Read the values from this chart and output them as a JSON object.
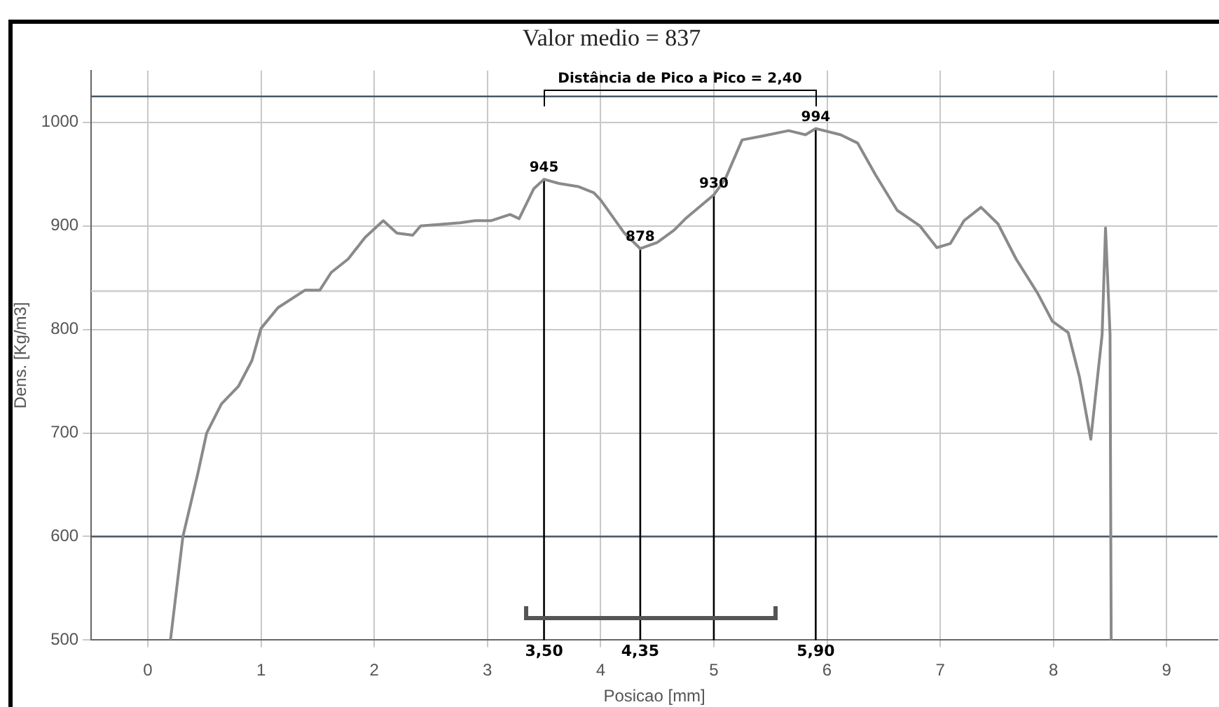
{
  "chart_data": {
    "type": "line",
    "title": "Valor medio = 837",
    "xlabel": "Posicao [mm]",
    "ylabel": "Dens. [Kg/m3]",
    "xlim": [
      -0.5,
      9.45
    ],
    "xticks": [
      0,
      1,
      2,
      3,
      4,
      5,
      6,
      7,
      8,
      9
    ],
    "ylim": [
      500,
      1050
    ],
    "yticks": [
      500,
      600,
      700,
      800,
      900,
      1000
    ],
    "grid": true,
    "legend": false,
    "marker": "none",
    "line_style": "solid",
    "series": [
      {
        "color": "#8a8a8a",
        "x": [
          0.2,
          0.31,
          0.44,
          0.52,
          0.65,
          0.8,
          0.92,
          1.0,
          1.15,
          1.39,
          1.52,
          1.62,
          1.77,
          1.92,
          2.08,
          2.2,
          2.34,
          2.41,
          2.76,
          2.89,
          3.03,
          3.2,
          3.28,
          3.41,
          3.5,
          3.63,
          3.8,
          3.94,
          4.0,
          4.21,
          4.35,
          4.5,
          4.65,
          4.75,
          5.0,
          5.1,
          5.25,
          5.44,
          5.66,
          5.81,
          5.9,
          6.12,
          6.27,
          6.43,
          6.62,
          6.82,
          6.97,
          7.09,
          7.21,
          7.36,
          7.51,
          7.67,
          7.86,
          7.99,
          8.13,
          8.23,
          8.33,
          8.43,
          8.46,
          8.5,
          8.51
        ],
        "values": [
          500,
          600,
          660,
          700,
          728,
          745,
          770,
          801,
          821,
          838,
          838,
          855,
          868,
          889,
          905,
          893,
          891,
          900,
          903,
          905,
          905,
          911,
          907,
          936,
          945,
          941,
          938,
          932,
          925,
          893,
          878,
          884,
          896,
          907,
          930,
          945,
          983,
          987,
          992,
          988,
          994,
          988,
          980,
          949,
          915,
          900,
          879,
          883,
          905,
          918,
          902,
          868,
          835,
          808,
          797,
          754,
          694,
          795,
          898,
          795,
          500
        ]
      }
    ],
    "ref_lines": [
      {
        "axis": "y",
        "value": 1025,
        "color": "#4a5866"
      },
      {
        "axis": "y",
        "value": 600,
        "color": "#4a5866"
      },
      {
        "axis": "y",
        "value": 837,
        "color": "#d0d0d0"
      },
      {
        "axis": "x",
        "value": 3.5,
        "label": "3,50",
        "color": "#000000"
      },
      {
        "axis": "x",
        "value": 4.35,
        "label": "4,35",
        "color": "#000000"
      },
      {
        "axis": "x",
        "value": 5.0,
        "color": "#000000"
      },
      {
        "axis": "x",
        "value": 5.9,
        "label": "5,90",
        "color": "#000000"
      }
    ],
    "annotations": [
      {
        "text": "945",
        "x": 3.5,
        "y": 945
      },
      {
        "text": "878",
        "x": 4.35,
        "y": 878
      },
      {
        "text": "930",
        "x": 5.0,
        "y": 930
      },
      {
        "text": "994",
        "x": 5.9,
        "y": 994
      },
      {
        "text": "Distância de Pico a Pico = 2,40",
        "x": 4.7,
        "y": 1031
      }
    ]
  }
}
